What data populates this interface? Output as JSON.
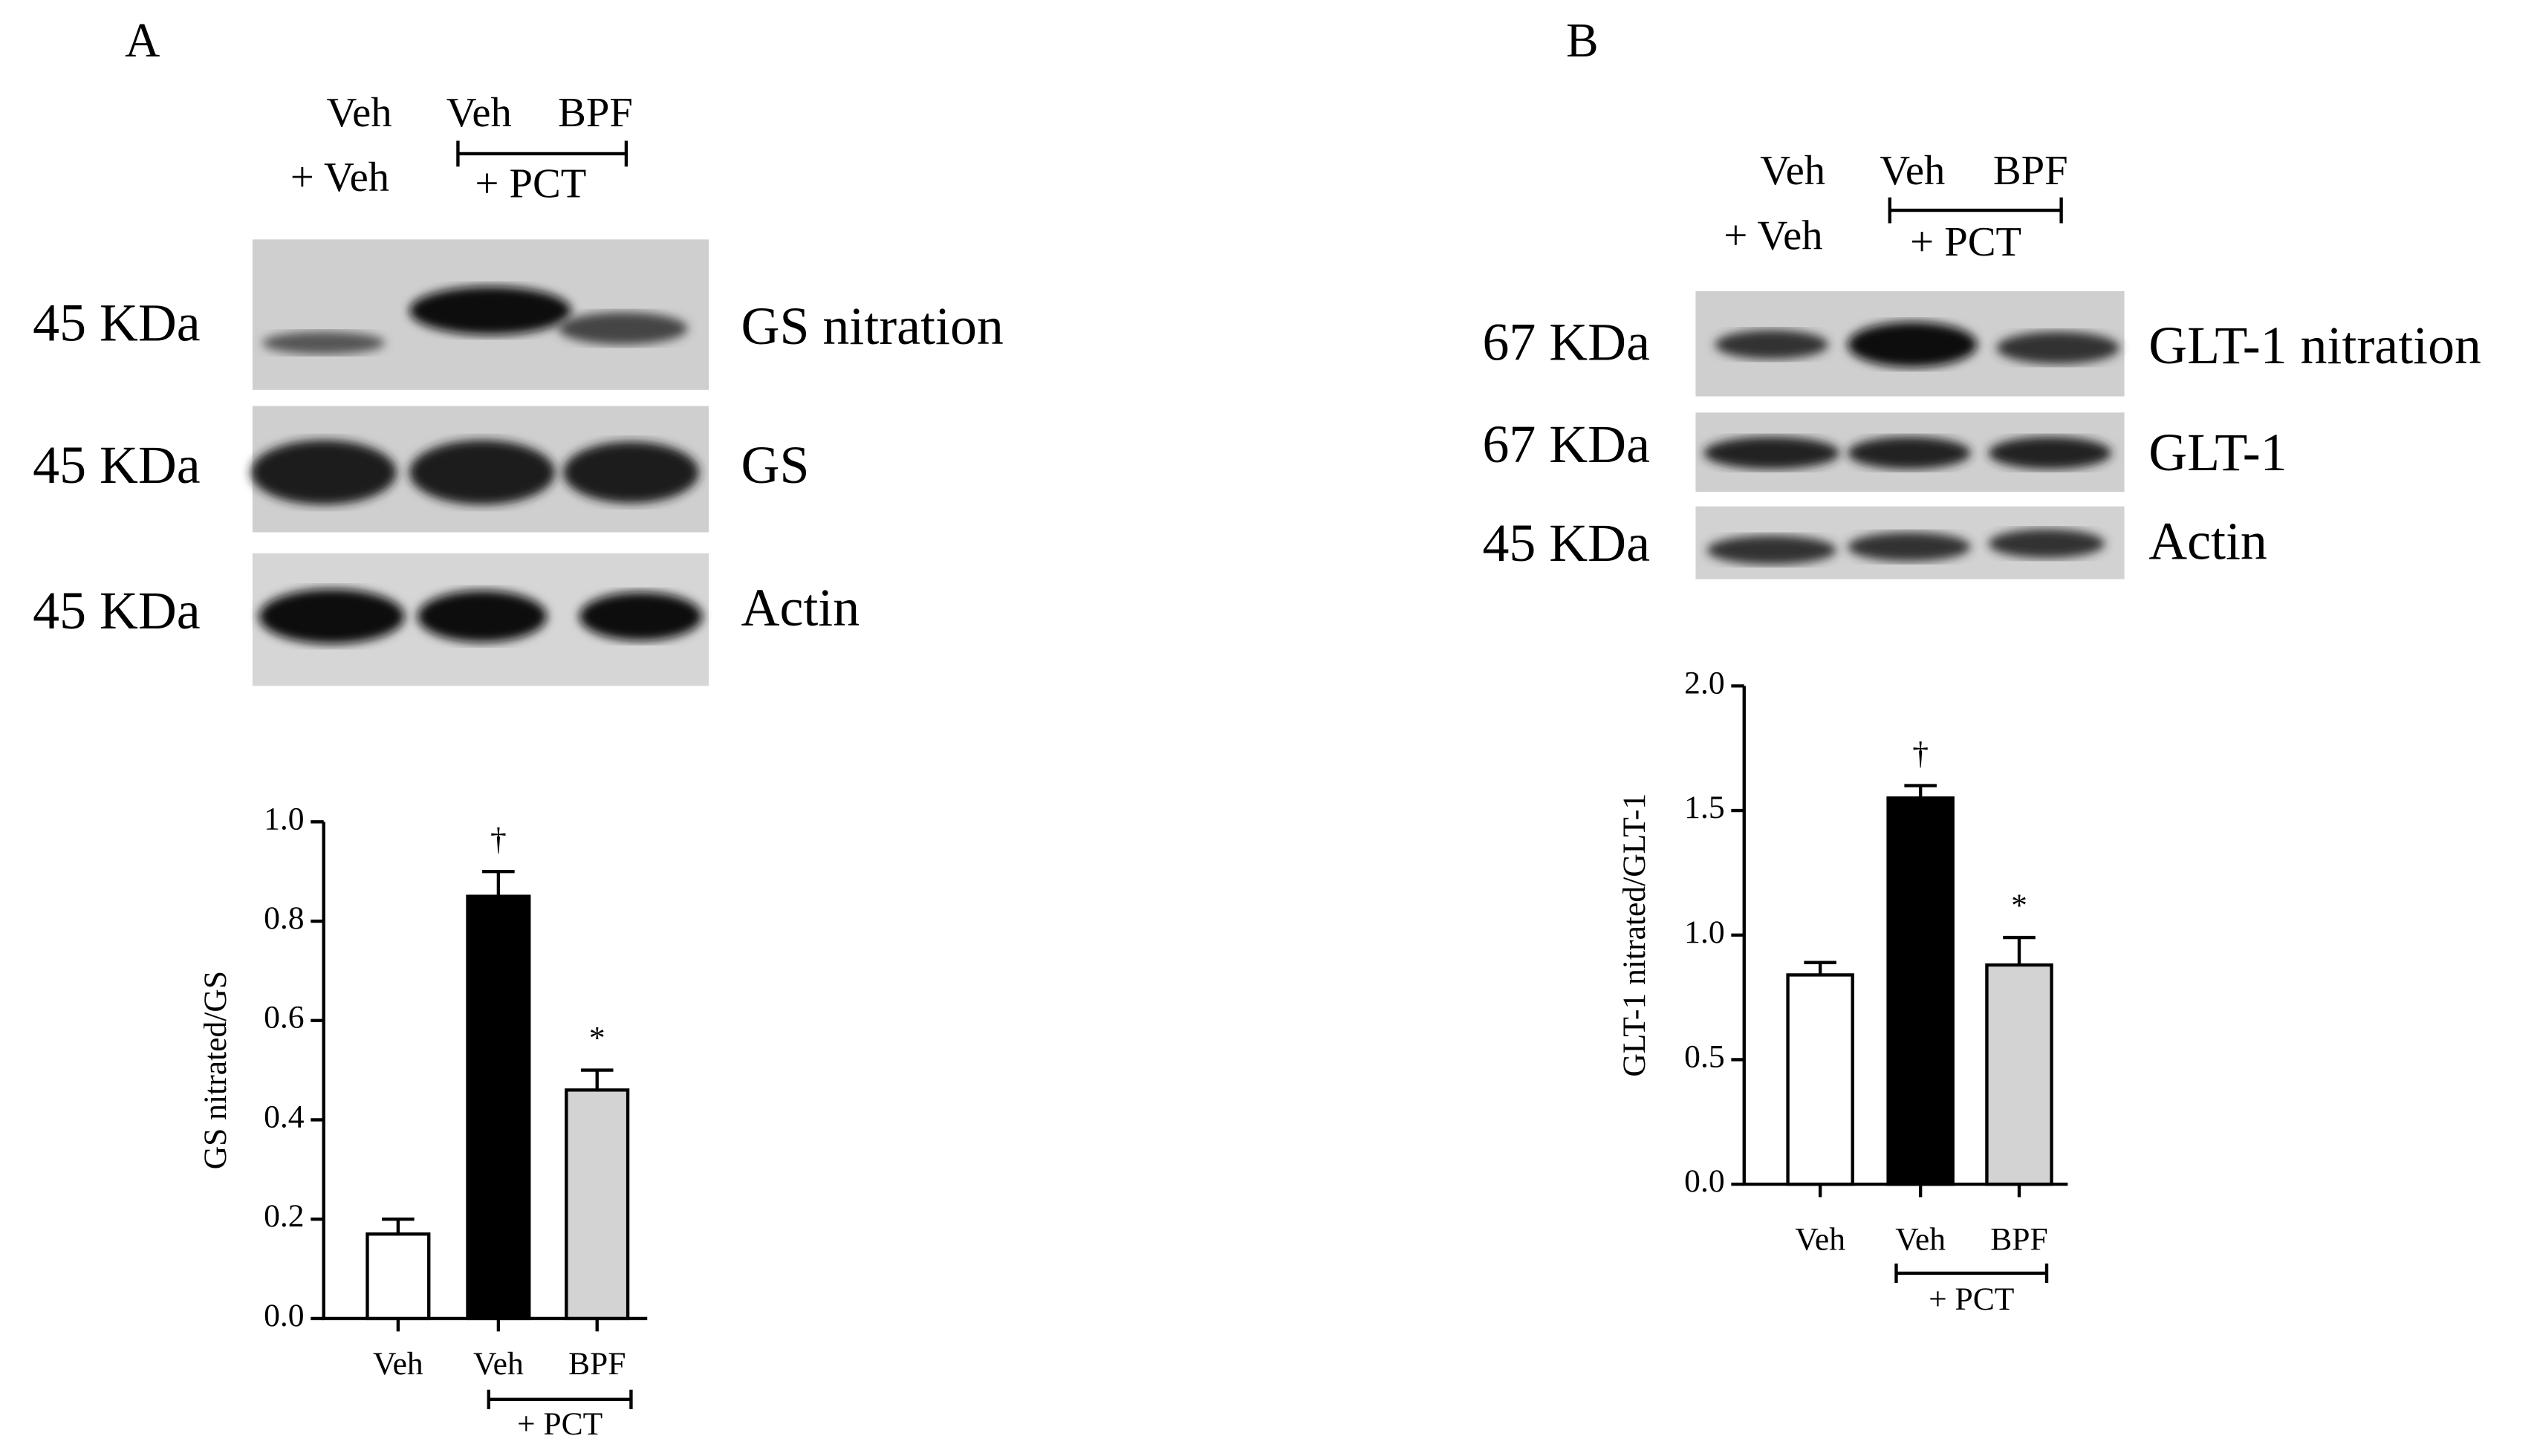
{
  "panels": [
    {
      "label": "A",
      "lanes": {
        "top": [
          "Veh",
          "Veh",
          "BPF"
        ],
        "bottom": "+ Veh",
        "group": "+ PCT"
      },
      "blots": [
        {
          "kda": "45 KDa",
          "name": "GS nitration"
        },
        {
          "kda": "45 KDa",
          "name": "GS"
        },
        {
          "kda": "45 KDa",
          "name": "Actin"
        }
      ]
    },
    {
      "label": "B",
      "lanes": {
        "top": [
          "Veh",
          "Veh",
          "BPF"
        ],
        "bottom": "+ Veh",
        "group": "+ PCT"
      },
      "blots": [
        {
          "kda": "67 KDa",
          "name": "GLT-1 nitration"
        },
        {
          "kda": "67 KDa",
          "name": "GLT-1"
        },
        {
          "kda": "45 KDa",
          "name": "Actin"
        }
      ]
    }
  ],
  "chart_data": [
    {
      "type": "bar",
      "ylabel": "GS nitrated/GS",
      "categories": [
        "Veh",
        "Veh",
        "BPF"
      ],
      "group_label": "+ PCT",
      "values": [
        0.17,
        0.85,
        0.46
      ],
      "errors": [
        0.03,
        0.05,
        0.04
      ],
      "colors": [
        "#ffffff",
        "#000000",
        "#d3d3d3"
      ],
      "annotations": [
        {
          "category": 1,
          "text": "†"
        },
        {
          "category": 2,
          "text": "*"
        }
      ],
      "ylim": [
        0,
        1
      ],
      "yticks": [
        {
          "value": 0,
          "label": "0.0"
        },
        0.2,
        0.4,
        0.6,
        0.8,
        {
          "value": 1,
          "label": "1.0"
        }
      ]
    },
    {
      "type": "bar",
      "ylabel": "GLT-1 nitrated/GLT-1",
      "categories": [
        "Veh",
        "Veh",
        "BPF"
      ],
      "group_label": "+ PCT",
      "values": [
        0.84,
        1.55,
        0.88
      ],
      "errors": [
        0.05,
        0.05,
        0.11
      ],
      "colors": [
        "#ffffff",
        "#000000",
        "#d3d3d3"
      ],
      "annotations": [
        {
          "category": 1,
          "text": "†"
        },
        {
          "category": 2,
          "text": "*"
        }
      ],
      "ylim": [
        0,
        2
      ],
      "yticks": [
        {
          "value": 0,
          "label": "0.0"
        },
        0.5,
        {
          "value": 1,
          "label": "1.0"
        },
        1.5,
        {
          "value": 2,
          "label": "2.0"
        }
      ]
    }
  ]
}
